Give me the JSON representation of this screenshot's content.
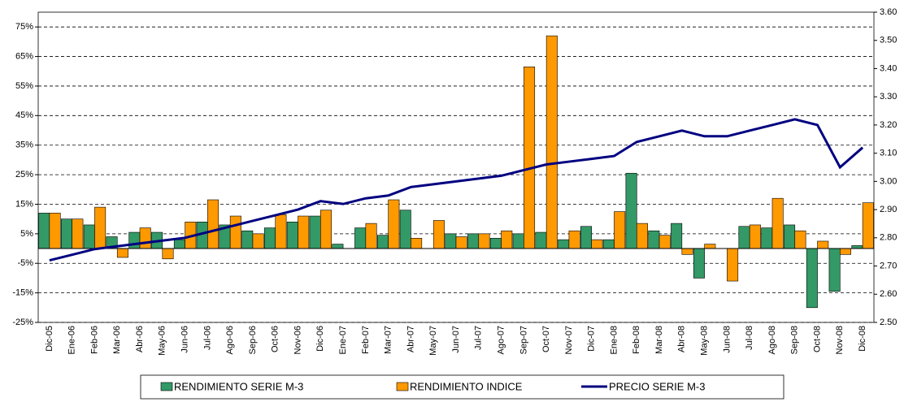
{
  "chart_data": {
    "type": "bar-line",
    "categories": [
      "Dic-05",
      "Ene-06",
      "Feb-06",
      "Mar-06",
      "Abr-06",
      "May-06",
      "Jun-06",
      "Jul-06",
      "Ago-06",
      "Sep-06",
      "Oct-06",
      "Nov-06",
      "Dic-06",
      "Ene-07",
      "Feb-07",
      "Mar-07",
      "Abr-07",
      "May-07",
      "Jun-07",
      "Jul-07",
      "Ago-07",
      "Sep-07",
      "Oct-07",
      "Nov-07",
      "Dic-07",
      "Ene-08",
      "Feb-08",
      "Mar-08",
      "Abr-08",
      "May-08",
      "Jun-08",
      "Jul-08",
      "Ago-08",
      "Sep-08",
      "Oct-08",
      "Nov-08",
      "Dic-08"
    ],
    "series": [
      {
        "name": "RENDIMIENTO SERIE M-3",
        "color": "#339966",
        "values": [
          12,
          10,
          8,
          4,
          5.5,
          5.5,
          3,
          9,
          8,
          6,
          7,
          9,
          11,
          1.5,
          7,
          4.5,
          13,
          0,
          5,
          5,
          3.5,
          5,
          5.5,
          3,
          7.5,
          3,
          25.5,
          6,
          8.5,
          -10,
          0,
          7.5,
          7,
          8,
          -20,
          -14.5,
          1
        ]
      },
      {
        "name": "RENDIMIENTO INDICE",
        "color": "#ff9900",
        "values": [
          12,
          10,
          14,
          -3,
          7,
          -3.5,
          9,
          16.5,
          11,
          5,
          11.5,
          11,
          13,
          0,
          8.5,
          16.5,
          3.5,
          9.5,
          4,
          5,
          6,
          61.5,
          72,
          6,
          3,
          12.5,
          8.5,
          4.5,
          -2,
          1.5,
          -11,
          8,
          17,
          6,
          2.5,
          -2,
          15.5
        ]
      },
      {
        "name": "PRECIO SERIE M-3",
        "color": "#000080",
        "axis": "y2",
        "values": [
          2.72,
          2.74,
          2.76,
          2.77,
          2.78,
          2.79,
          2.8,
          2.82,
          2.84,
          2.86,
          2.88,
          2.9,
          2.93,
          2.92,
          2.94,
          2.95,
          2.98,
          2.99,
          3,
          3.01,
          3.02,
          3.04,
          3.06,
          3.07,
          3.08,
          3.09,
          3.14,
          3.16,
          3.18,
          3.16,
          3.16,
          3.18,
          3.2,
          3.22,
          3.2,
          3.05,
          3.12
        ]
      }
    ],
    "ylim": [
      -25,
      80
    ],
    "yticks": [
      {
        "value": -25,
        "label": "-25%"
      },
      {
        "value": -15,
        "label": "-15%"
      },
      {
        "value": -5,
        "label": "-5%"
      },
      {
        "value": 5,
        "label": "5%"
      },
      {
        "value": 15,
        "label": "15%"
      },
      {
        "value": 25,
        "label": "25%"
      },
      {
        "value": 35,
        "label": "35%"
      },
      {
        "value": 45,
        "label": "45%"
      },
      {
        "value": 55,
        "label": "55%"
      },
      {
        "value": 65,
        "label": "65%"
      },
      {
        "value": 75,
        "label": "75%"
      }
    ],
    "y2lim": [
      2.5,
      3.6
    ],
    "y2ticks": [
      {
        "value": 2.5,
        "label": "2.50"
      },
      {
        "value": 2.6,
        "label": "2.60"
      },
      {
        "value": 2.7,
        "label": "2.70"
      },
      {
        "value": 2.8,
        "label": "2.80"
      },
      {
        "value": 2.9,
        "label": "2.90"
      },
      {
        "value": 3,
        "label": "3.00"
      },
      {
        "value": 3.1,
        "label": "3.10"
      },
      {
        "value": 3.2,
        "label": "3.20"
      },
      {
        "value": 3.3,
        "label": "3.30"
      },
      {
        "value": 3.4,
        "label": "3.40"
      },
      {
        "value": 3.5,
        "label": "3.50"
      },
      {
        "value": 3.6,
        "label": "3.60"
      }
    ],
    "grid": true,
    "legend": "bottom"
  }
}
